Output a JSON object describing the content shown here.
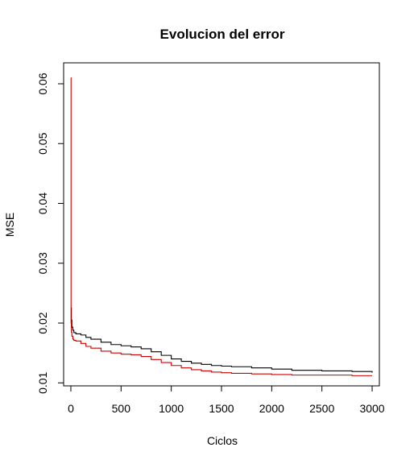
{
  "chart_data": {
    "type": "line",
    "title": "Evolucion del error",
    "xlabel": "Ciclos",
    "ylabel": "MSE",
    "xlim": [
      -72,
      3072
    ],
    "ylim": [
      0.0095,
      0.0635
    ],
    "xticks": [
      0,
      500,
      1000,
      1500,
      2000,
      2500,
      3000
    ],
    "xtick_labels": [
      "0",
      "500",
      "1000",
      "1500",
      "2000",
      "2500",
      "3000"
    ],
    "yticks": [
      0.01,
      0.02,
      0.03,
      0.04,
      0.05,
      0.06
    ],
    "ytick_labels": [
      "0.01",
      "0.02",
      "0.03",
      "0.04",
      "0.05",
      "0.06"
    ],
    "grid": false,
    "legend": "none",
    "series": [
      {
        "color": "#000000",
        "x": [
          1,
          5,
          10,
          20,
          30,
          50,
          100,
          150,
          200,
          300,
          400,
          500,
          600,
          700,
          800,
          900,
          1000,
          1100,
          1200,
          1300,
          1400,
          1500,
          1600,
          1800,
          2000,
          2200,
          2500,
          2800,
          3000
        ],
        "y": [
          0.0225,
          0.0205,
          0.0193,
          0.0188,
          0.0184,
          0.0182,
          0.018,
          0.0176,
          0.0173,
          0.0168,
          0.0164,
          0.0162,
          0.016,
          0.0157,
          0.0152,
          0.0146,
          0.014,
          0.0136,
          0.0133,
          0.0131,
          0.0129,
          0.0128,
          0.0127,
          0.0125,
          0.0123,
          0.0121,
          0.012,
          0.0119,
          0.0117
        ]
      },
      {
        "color": "#cc0000",
        "x": [
          0,
          2,
          5,
          10,
          20,
          30,
          50,
          100,
          150,
          200,
          300,
          400,
          500,
          600,
          700,
          800,
          900,
          1000,
          1100,
          1200,
          1300,
          1400,
          1500,
          1600,
          1800,
          2000,
          2200,
          2500,
          2800,
          3000
        ],
        "y": [
          0.061,
          0.02,
          0.0185,
          0.0178,
          0.0173,
          0.0171,
          0.017,
          0.0166,
          0.0161,
          0.0158,
          0.0153,
          0.015,
          0.0148,
          0.0147,
          0.0144,
          0.0139,
          0.0134,
          0.0129,
          0.0125,
          0.0122,
          0.012,
          0.0118,
          0.0117,
          0.0116,
          0.0115,
          0.0114,
          0.0113,
          0.0113,
          0.0112,
          0.0112
        ]
      }
    ]
  }
}
